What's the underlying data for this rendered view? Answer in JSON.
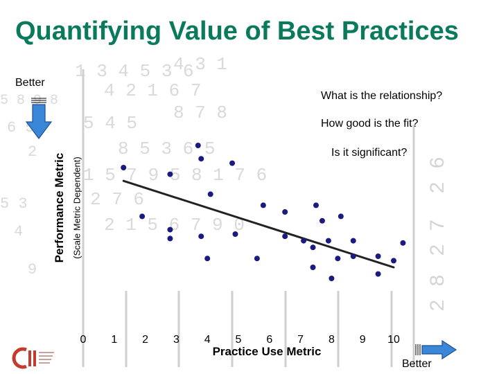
{
  "slide": {
    "title": "Quantifying Value of Best Practices",
    "better_top": "Better",
    "better_bottom": "Better",
    "questions": [
      "What is the relationship?",
      "How good is the fit?",
      "Is it significant?"
    ],
    "logo_text": "CII"
  },
  "colors": {
    "title": "#0a7a5c",
    "points": "#1a1a80",
    "arrow_fill": "#3a86d8",
    "background_numbers": "#d7d7d7"
  },
  "chart_data": {
    "type": "scatter",
    "xlabel": "Practice Use Metric",
    "ylabel": "Performance Metric",
    "ylabel_sub": "(Scale Metric Dependent)",
    "x_ticks": [
      "0",
      "1",
      "2",
      "3",
      "4",
      "5",
      "6",
      "7",
      "8",
      "9",
      "10"
    ],
    "xlim": [
      0,
      10
    ],
    "ylim": [
      0,
      10
    ],
    "grid": false,
    "legend": "none",
    "points": [
      {
        "x": 1.3,
        "y": 6.5
      },
      {
        "x": 1.9,
        "y": 4.3
      },
      {
        "x": 2.8,
        "y": 6.2
      },
      {
        "x": 2.8,
        "y": 3.7
      },
      {
        "x": 2.8,
        "y": 3.3
      },
      {
        "x": 3.7,
        "y": 7.5
      },
      {
        "x": 3.8,
        "y": 6.9
      },
      {
        "x": 3.8,
        "y": 3.4
      },
      {
        "x": 4.0,
        "y": 2.4
      },
      {
        "x": 4.1,
        "y": 5.3
      },
      {
        "x": 4.8,
        "y": 6.7
      },
      {
        "x": 4.9,
        "y": 3.5
      },
      {
        "x": 5.6,
        "y": 2.4
      },
      {
        "x": 5.8,
        "y": 4.8
      },
      {
        "x": 6.5,
        "y": 4.5
      },
      {
        "x": 6.5,
        "y": 3.4
      },
      {
        "x": 7.1,
        "y": 3.2
      },
      {
        "x": 7.4,
        "y": 2.9
      },
      {
        "x": 7.4,
        "y": 2.0
      },
      {
        "x": 7.5,
        "y": 4.8
      },
      {
        "x": 7.7,
        "y": 4.1
      },
      {
        "x": 7.9,
        "y": 3.2
      },
      {
        "x": 8.0,
        "y": 1.5
      },
      {
        "x": 8.2,
        "y": 2.4
      },
      {
        "x": 8.3,
        "y": 4.3
      },
      {
        "x": 8.7,
        "y": 3.2
      },
      {
        "x": 8.7,
        "y": 2.5
      },
      {
        "x": 9.5,
        "y": 2.5
      },
      {
        "x": 9.5,
        "y": 1.7
      },
      {
        "x": 10.0,
        "y": 2.3
      },
      {
        "x": 10.3,
        "y": 3.1
      }
    ],
    "trendline": {
      "from": {
        "x": 1.3,
        "y": 5.9
      },
      "to": {
        "x": 10.0,
        "y": 2.0
      }
    }
  }
}
